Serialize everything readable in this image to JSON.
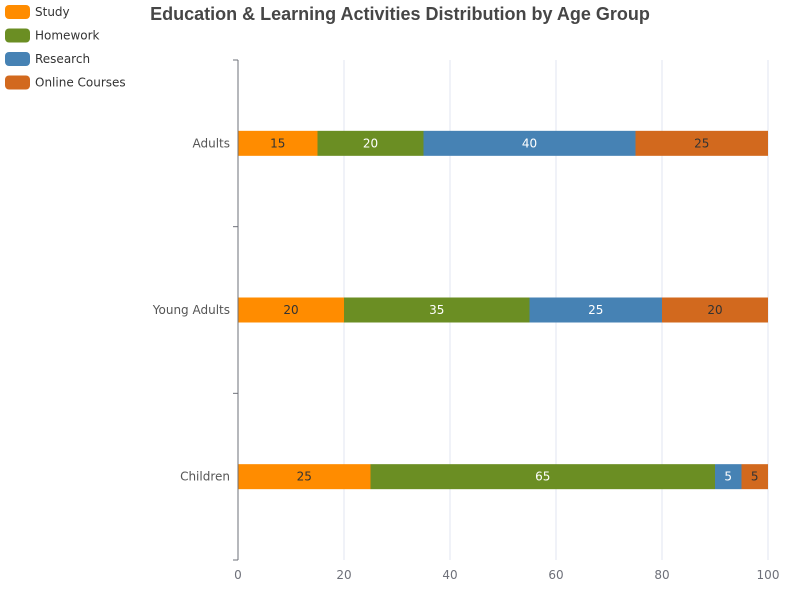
{
  "chart_data": {
    "type": "bar",
    "orientation": "horizontal",
    "stacked": true,
    "title": "Education & Learning Activities Distribution by Age Group",
    "categories": [
      "Children",
      "Young Adults",
      "Adults"
    ],
    "series": [
      {
        "name": "Study",
        "color": "#FF8C00",
        "label_color": "#333333",
        "values": [
          25,
          20,
          15
        ]
      },
      {
        "name": "Homework",
        "color": "#6B8E23",
        "label_color": "#ffffff",
        "values": [
          65,
          35,
          20
        ]
      },
      {
        "name": "Research",
        "color": "#4682B4",
        "label_color": "#ffffff",
        "values": [
          5,
          25,
          40
        ]
      },
      {
        "name": "Online Courses",
        "color": "#D2691E",
        "label_color": "#333333",
        "values": [
          5,
          20,
          25
        ]
      }
    ],
    "xlim": [
      0,
      100
    ],
    "xticks": [
      "0",
      "20",
      "40",
      "60",
      "80",
      "100"
    ],
    "grid": true,
    "legend_position": "top-left",
    "xlabel": "",
    "ylabel": ""
  }
}
